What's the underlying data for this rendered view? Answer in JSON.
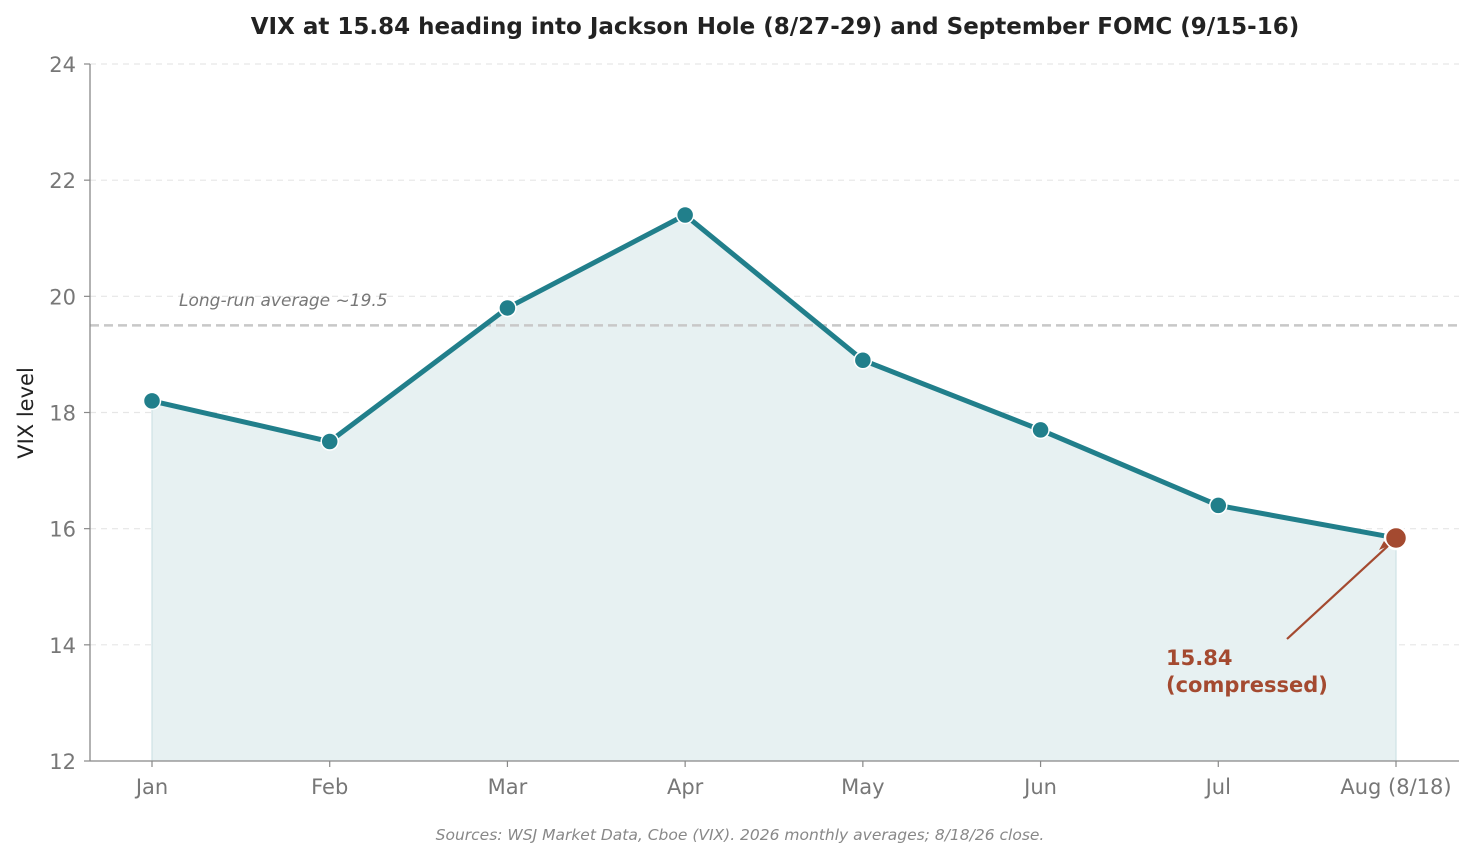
{
  "chart_data": {
    "type": "line",
    "title": "VIX at 15.84 heading into Jackson Hole (8/27-29) and September FOMC (9/15-16)",
    "xlabel": "",
    "ylabel": "VIX level",
    "categories": [
      "Jan",
      "Feb",
      "Mar",
      "Apr",
      "May",
      "Jun",
      "Jul",
      "Aug (8/18)"
    ],
    "series": [
      {
        "values": [
          18.2,
          17.5,
          19.8,
          21.4,
          18.9,
          17.7,
          16.4,
          15.84
        ]
      }
    ],
    "ylim": [
      12,
      24
    ],
    "yticks": [
      12,
      14,
      16,
      18,
      20,
      22,
      24
    ],
    "grid": true,
    "area_fill": true,
    "reference_line": {
      "value": 19.5,
      "label": "Long-run average ~19.5"
    },
    "annotation": {
      "index": 7,
      "lines": [
        "15.84",
        "(compressed)"
      ]
    },
    "source_note": "Sources: WSJ Market Data, Cboe (VIX). 2026 monthly averages; 8/18/26 close.",
    "colors": {
      "line": "#217f8b",
      "area": "#e7f1f2",
      "highlight": "#a44a30",
      "reference": "#c8c8c8",
      "grid": "#e6e6e6",
      "axis": "#888888"
    }
  }
}
